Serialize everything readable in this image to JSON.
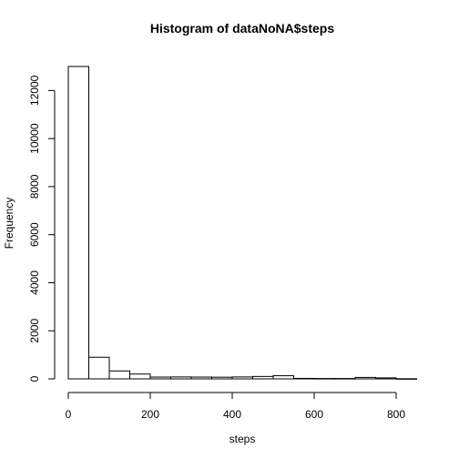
{
  "chart_data": {
    "type": "bar",
    "title": "Histogram of dataNoNA$steps",
    "xlabel": "steps",
    "ylabel": "Frequency",
    "bin_width": 50,
    "bins": [
      {
        "start": 0,
        "end": 50,
        "count": 13000
      },
      {
        "start": 50,
        "end": 100,
        "count": 900
      },
      {
        "start": 100,
        "end": 150,
        "count": 330
      },
      {
        "start": 150,
        "end": 200,
        "count": 200
      },
      {
        "start": 200,
        "end": 250,
        "count": 75
      },
      {
        "start": 250,
        "end": 300,
        "count": 80
      },
      {
        "start": 300,
        "end": 350,
        "count": 75
      },
      {
        "start": 350,
        "end": 400,
        "count": 70
      },
      {
        "start": 400,
        "end": 450,
        "count": 80
      },
      {
        "start": 450,
        "end": 500,
        "count": 100
      },
      {
        "start": 500,
        "end": 550,
        "count": 130
      },
      {
        "start": 550,
        "end": 600,
        "count": 20
      },
      {
        "start": 600,
        "end": 650,
        "count": 15
      },
      {
        "start": 650,
        "end": 700,
        "count": 15
      },
      {
        "start": 700,
        "end": 750,
        "count": 60
      },
      {
        "start": 750,
        "end": 800,
        "count": 40
      },
      {
        "start": 800,
        "end": 850,
        "count": 5
      }
    ],
    "xlim": [
      0,
      850
    ],
    "ylim": [
      0,
      13000
    ],
    "x_ticks": [
      0,
      200,
      400,
      600,
      800
    ],
    "y_ticks": [
      0,
      2000,
      4000,
      6000,
      8000,
      10000,
      12000
    ],
    "grid": false,
    "bar_fill": "#ffffff",
    "bar_stroke": "#000000"
  }
}
